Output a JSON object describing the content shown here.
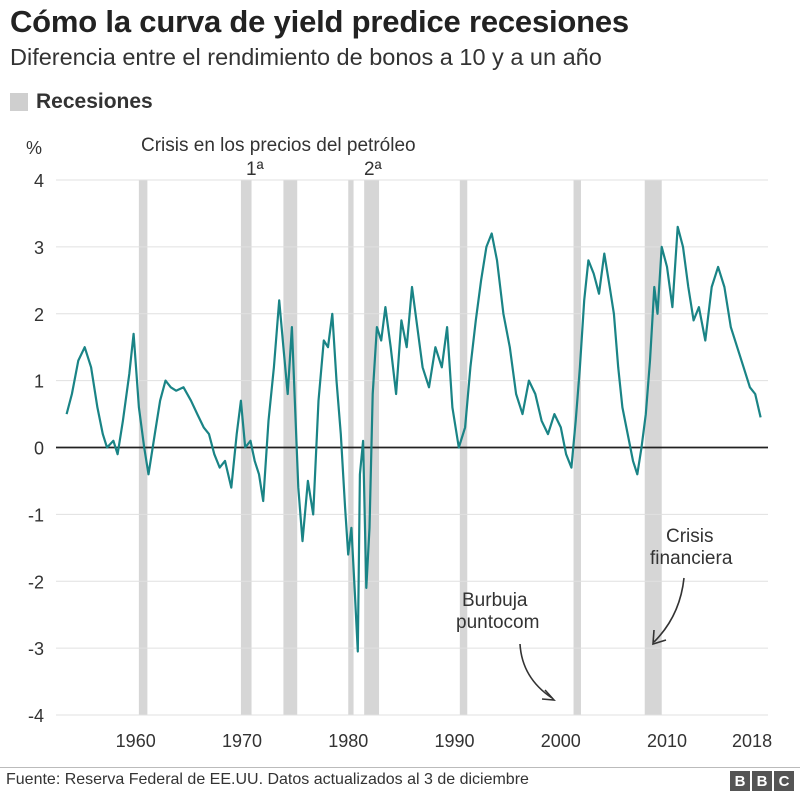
{
  "header": {
    "title": "Cómo la curva de yield predice recesiones",
    "subtitle": "Diferencia entre el rendimiento de bonos a 10 y a un año"
  },
  "legend": {
    "label": "Recesiones",
    "swatch_color": "#cfcfcf"
  },
  "footer": {
    "source": "Fuente: Reserva Federal de EE.UU. Datos actualizados al 3 de diciembre",
    "logo_letters": [
      "B",
      "B",
      "C"
    ]
  },
  "colors": {
    "line": "#1a8486",
    "recession": "#d6d6d6",
    "grid": "#e0e0e0",
    "zero": "#222222"
  },
  "chart_data": {
    "type": "line",
    "ylabel": "%",
    "ylim": [
      -4,
      4
    ],
    "yticks": [
      4,
      3,
      2,
      1,
      0,
      -1,
      -2,
      -3,
      -4
    ],
    "xlim": [
      1952.5,
      2019.5
    ],
    "xticks": [
      1960,
      1970,
      1980,
      1990,
      2000,
      2010,
      2018
    ],
    "grid": true,
    "legend_position": "top-left",
    "recessions": [
      [
        1960.3,
        1961.1
      ],
      [
        1969.9,
        1970.9
      ],
      [
        1973.9,
        1975.2
      ],
      [
        1980.0,
        1980.5
      ],
      [
        1981.5,
        1982.9
      ],
      [
        1990.5,
        1991.2
      ],
      [
        2001.2,
        2001.9
      ],
      [
        2007.9,
        2009.5
      ]
    ],
    "annotations": {
      "oil_crisis": "Crisis en los precios del petróleo",
      "oil_first": "1ª",
      "oil_second": "2ª",
      "dotcom_line1": "Burbuja",
      "dotcom_line2": "puntocom",
      "financial_line1": "Crisis",
      "financial_line2": "financiera"
    },
    "series": [
      {
        "x": [
          1953.5,
          1954.0,
          1954.6,
          1955.2,
          1955.8,
          1956.4,
          1956.9,
          1957.3,
          1957.9,
          1958.3,
          1958.8,
          1959.4,
          1959.8,
          1960.3,
          1960.8,
          1961.2,
          1961.8,
          1962.3,
          1962.8,
          1963.3,
          1963.8,
          1964.5,
          1965.2,
          1965.8,
          1966.4,
          1966.9,
          1967.4,
          1967.9,
          1968.4,
          1969.0,
          1969.5,
          1969.9,
          1970.3,
          1970.8,
          1971.2,
          1971.6,
          1972.0,
          1972.5,
          1973.0,
          1973.5,
          1973.9,
          1974.3,
          1974.7,
          1975.0,
          1975.3,
          1975.7,
          1976.2,
          1976.7,
          1977.2,
          1977.7,
          1978.1,
          1978.5,
          1978.9,
          1979.3,
          1979.7,
          1980.0,
          1980.3,
          1980.6,
          1980.9,
          1981.1,
          1981.4,
          1981.7,
          1982.0,
          1982.3,
          1982.7,
          1983.1,
          1983.5,
          1984.0,
          1984.5,
          1985.0,
          1985.5,
          1986.0,
          1986.5,
          1987.0,
          1987.6,
          1988.2,
          1988.8,
          1989.3,
          1989.8,
          1990.4,
          1991.0,
          1991.5,
          1992.0,
          1992.5,
          1993.0,
          1993.5,
          1994.0,
          1994.6,
          1995.2,
          1995.8,
          1996.4,
          1997.0,
          1997.6,
          1998.2,
          1998.8,
          1999.4,
          2000.0,
          2000.5,
          2001.0,
          2001.4,
          2001.8,
          2002.2,
          2002.6,
          2003.1,
          2003.6,
          2004.1,
          2004.6,
          2005.0,
          2005.4,
          2005.8,
          2006.3,
          2006.8,
          2007.2,
          2007.6,
          2008.0,
          2008.4,
          2008.8,
          2009.1,
          2009.5,
          2010.0,
          2010.5,
          2011.0,
          2011.5,
          2012.0,
          2012.5,
          2013.0,
          2013.6,
          2014.2,
          2014.8,
          2015.4,
          2016.0,
          2016.6,
          2017.2,
          2017.8,
          2018.3,
          2018.8
        ],
        "y": [
          0.5,
          0.8,
          1.3,
          1.5,
          1.2,
          0.6,
          0.2,
          0.0,
          0.1,
          -0.1,
          0.4,
          1.1,
          1.7,
          0.6,
          0.0,
          -0.4,
          0.2,
          0.7,
          1.0,
          0.9,
          0.85,
          0.9,
          0.7,
          0.5,
          0.3,
          0.2,
          -0.1,
          -0.3,
          -0.2,
          -0.6,
          0.2,
          0.7,
          0.0,
          0.1,
          -0.2,
          -0.4,
          -0.8,
          0.4,
          1.2,
          2.2,
          1.5,
          0.8,
          1.8,
          0.6,
          -0.6,
          -1.4,
          -0.5,
          -1.0,
          0.7,
          1.6,
          1.5,
          2.0,
          1.0,
          0.2,
          -0.9,
          -1.6,
          -1.2,
          -2.1,
          -3.05,
          -0.4,
          0.1,
          -2.1,
          -1.2,
          0.8,
          1.8,
          1.6,
          2.1,
          1.5,
          0.8,
          1.9,
          1.5,
          2.4,
          1.8,
          1.2,
          0.9,
          1.5,
          1.2,
          1.8,
          0.6,
          0.0,
          0.3,
          1.2,
          1.9,
          2.5,
          3.0,
          3.2,
          2.8,
          2.0,
          1.5,
          0.8,
          0.5,
          1.0,
          0.8,
          0.4,
          0.2,
          0.5,
          0.3,
          -0.1,
          -0.3,
          0.4,
          1.2,
          2.2,
          2.8,
          2.6,
          2.3,
          2.9,
          2.4,
          2.0,
          1.2,
          0.6,
          0.2,
          -0.2,
          -0.4,
          0.0,
          0.5,
          1.3,
          2.4,
          2.0,
          3.0,
          2.7,
          2.1,
          3.3,
          3.0,
          2.4,
          1.9,
          2.1,
          1.6,
          2.4,
          2.7,
          2.4,
          1.8,
          1.5,
          1.2,
          0.9,
          0.8,
          0.45
        ]
      }
    ]
  }
}
